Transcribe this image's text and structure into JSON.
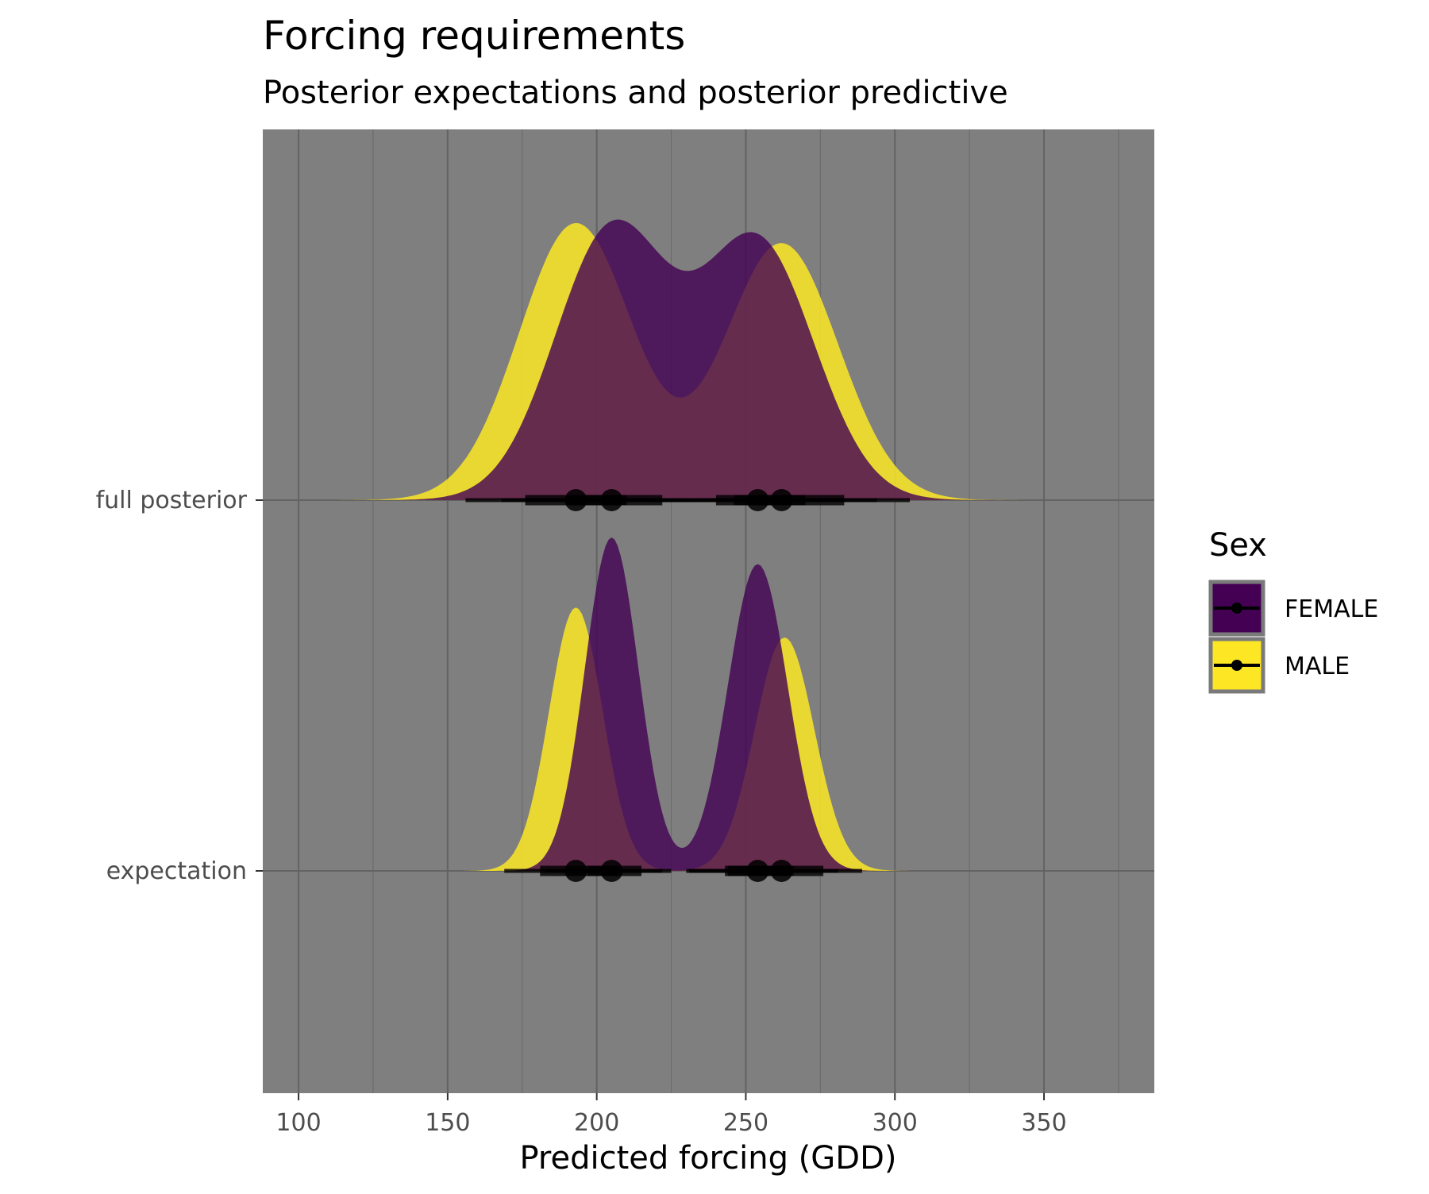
{
  "chart_data": {
    "type": "density-ridges",
    "title": "Forcing requirements",
    "subtitle": "Posterior expectations and posterior predictive",
    "xlabel": "Predicted forcing (GDD)",
    "ylabel": "",
    "xlim": [
      88,
      387
    ],
    "x_ticks": [
      100,
      150,
      200,
      250,
      300,
      350
    ],
    "x_tick_labels": [
      "100",
      "150",
      "200",
      "250",
      "300",
      "350"
    ],
    "categories": [
      "full posterior",
      "expectation"
    ],
    "grid": true,
    "panel_background": "#7f7f7f",
    "legend": {
      "title": "Sex",
      "position": "right",
      "entries": [
        "FEMALE",
        "MALE"
      ]
    },
    "series": [
      {
        "name": "FEMALE",
        "color": "#440154",
        "distributions": [
          {
            "row": "full posterior",
            "peaks": [
              {
                "mean": 205,
                "sd": 19,
                "height": 0.81
              },
              {
                "mean": 254,
                "sd": 19,
                "height": 0.77
              }
            ]
          },
          {
            "row": "expectation",
            "peaks": [
              {
                "mean": 205,
                "sd": 9,
                "height": 1.0
              },
              {
                "mean": 254,
                "sd": 10,
                "height": 0.92
              }
            ]
          }
        ],
        "intervals": [
          {
            "row": "full posterior",
            "points": [
              205,
              254
            ],
            "inner": [
              [
                190,
                222
              ],
              [
                240,
                270
              ]
            ],
            "outer": [
              [
                168,
                240
              ],
              [
                218,
                294
              ]
            ]
          },
          {
            "row": "expectation",
            "points": [
              205,
              254
            ],
            "inner": [
              [
                197,
                215
              ],
              [
                244,
                266
              ]
            ],
            "outer": [
              [
                183,
                225
              ],
              [
                230,
                281
              ]
            ]
          }
        ]
      },
      {
        "name": "MALE",
        "color": "#fde725",
        "distributions": [
          {
            "row": "full posterior",
            "peaks": [
              {
                "mean": 193,
                "sd": 19,
                "height": 0.83
              },
              {
                "mean": 262,
                "sd": 19,
                "height": 0.77
              }
            ]
          },
          {
            "row": "expectation",
            "peaks": [
              {
                "mean": 193,
                "sd": 9,
                "height": 0.79
              },
              {
                "mean": 263,
                "sd": 10,
                "height": 0.7
              }
            ]
          }
        ],
        "intervals": [
          {
            "row": "full posterior",
            "points": [
              193,
              262
            ],
            "inner": [
              [
                176,
                210
              ],
              [
                246,
                283
              ]
            ],
            "outer": [
              [
                156,
                231
              ],
              [
                227,
                305
              ]
            ]
          },
          {
            "row": "expectation",
            "points": [
              193,
              262
            ],
            "inner": [
              [
                181,
                207
              ],
              [
                243,
                276
              ]
            ],
            "outer": [
              [
                169,
                222
              ],
              [
                231,
                289
              ]
            ]
          }
        ]
      }
    ]
  }
}
